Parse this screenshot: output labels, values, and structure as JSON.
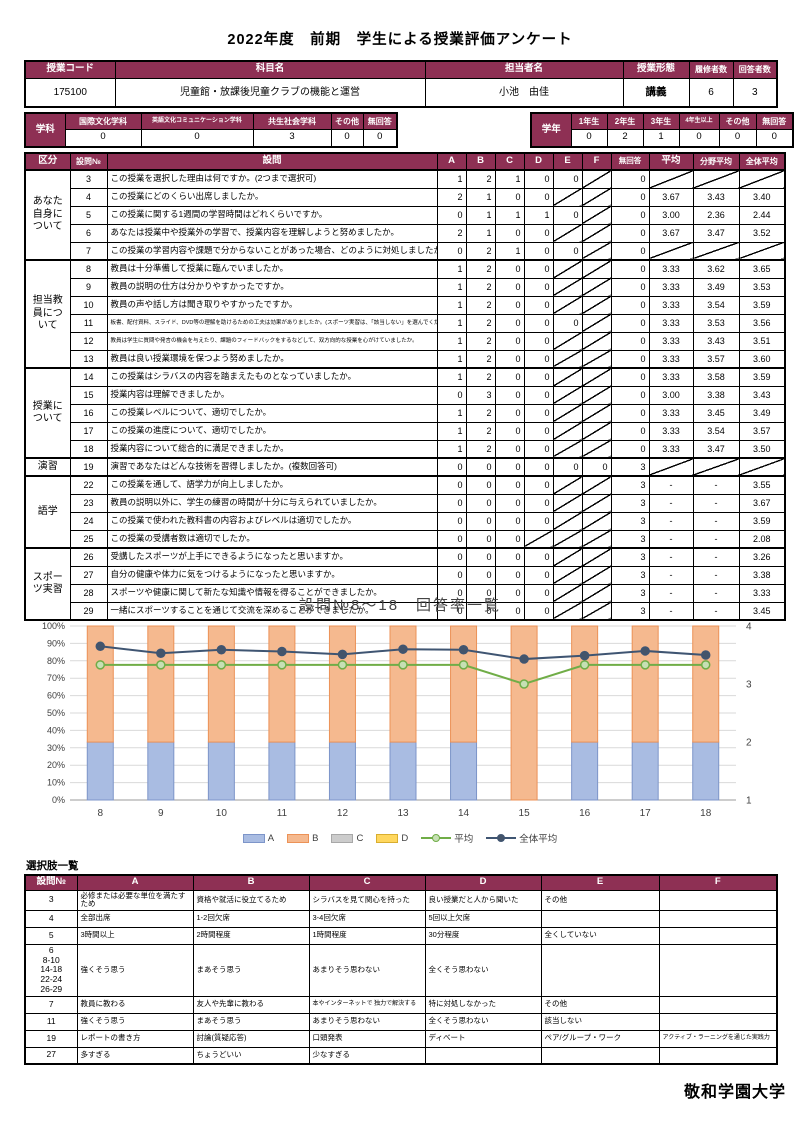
{
  "accent_color": "#8e3054",
  "page_title": "2022年度　前期　学生による授業評価アンケート",
  "course_table": {
    "headers": [
      "授業コード",
      "科目名",
      "担当者名",
      "授業形態",
      "履修者数",
      "回答者数"
    ],
    "values": [
      "175100",
      "児童館・放課後児童クラブの機能と運営",
      "小池　由佳",
      "講義",
      "6",
      "3"
    ]
  },
  "dept_table": {
    "label": "学科",
    "headers": [
      "国際文化学科",
      "英語文化コミュニケーション学科",
      "共生社会学科",
      "その他",
      "無回答"
    ],
    "values": [
      "0",
      "0",
      "3",
      "0",
      "0"
    ]
  },
  "year_table": {
    "label": "学年",
    "headers": [
      "1年生",
      "2年生",
      "3年生",
      "4年生以上",
      "その他",
      "無回答"
    ],
    "values": [
      "0",
      "2",
      "1",
      "0",
      "0",
      "0"
    ]
  },
  "question_table": {
    "headers": [
      "区分",
      "設問№",
      "設問",
      "A",
      "B",
      "C",
      "D",
      "E",
      "F",
      "無回答",
      "平均",
      "分野平均",
      "全体平均"
    ],
    "groups": [
      {
        "label": "あなた自身について",
        "rows": [
          {
            "no": "3",
            "q": "この授業を選択した理由は何ですか。(2つまで選択可)",
            "cells": [
              "1",
              "2",
              "1",
              "0",
              "0",
              "\\",
              "0",
              "\\",
              "\\",
              "\\"
            ]
          },
          {
            "no": "4",
            "q": "この授業にどのくらい出席しましたか。",
            "cells": [
              "2",
              "1",
              "0",
              "0",
              "\\",
              "\\",
              "0",
              "3.67",
              "3.43",
              "3.40"
            ]
          },
          {
            "no": "5",
            "q": "この授業に関する1週間の学習時間はどれくらいですか。",
            "cells": [
              "0",
              "1",
              "1",
              "1",
              "0",
              "\\",
              "0",
              "3.00",
              "2.36",
              "2.44"
            ]
          },
          {
            "no": "6",
            "q": "あなたは授業中や授業外の学習で、授業内容を理解しようと努めましたか。",
            "cells": [
              "2",
              "1",
              "0",
              "0",
              "\\",
              "\\",
              "0",
              "3.67",
              "3.47",
              "3.52"
            ]
          },
          {
            "no": "7",
            "q": "この授業の学習内容や課題で分からないことがあった場合、どのように対処しましたか。",
            "cells": [
              "0",
              "2",
              "1",
              "0",
              "0",
              "\\",
              "0",
              "\\",
              "\\",
              "\\"
            ]
          }
        ]
      },
      {
        "label": "担当教員について",
        "rows": [
          {
            "no": "8",
            "q": "教員は十分準備して授業に臨んでいましたか。",
            "cells": [
              "1",
              "2",
              "0",
              "0",
              "\\",
              "\\",
              "0",
              "3.33",
              "3.62",
              "3.65"
            ]
          },
          {
            "no": "9",
            "q": "教員の説明の仕方は分かりやすかったですか。",
            "cells": [
              "1",
              "2",
              "0",
              "0",
              "\\",
              "\\",
              "0",
              "3.33",
              "3.49",
              "3.53"
            ]
          },
          {
            "no": "10",
            "q": "教員の声や話し方は聞き取りやすかったですか。",
            "cells": [
              "1",
              "2",
              "0",
              "0",
              "\\",
              "\\",
              "0",
              "3.33",
              "3.54",
              "3.59"
            ]
          },
          {
            "no": "11",
            "q": "板書、配付資料、スライド、DVD等の理解を助けるための工夫は効果がありましたか。(スポーツ実習は、「該当しない」を選んでください)",
            "small": true,
            "cells": [
              "1",
              "2",
              "0",
              "0",
              "0",
              "\\",
              "0",
              "3.33",
              "3.53",
              "3.56"
            ]
          },
          {
            "no": "12",
            "q": "教員は学生に質問や発言の機会を与えたり、課題のフィードバックをするなどして、双方向的な授業を心がけていましたか。",
            "small": true,
            "cells": [
              "1",
              "2",
              "0",
              "0",
              "\\",
              "\\",
              "0",
              "3.33",
              "3.43",
              "3.51"
            ]
          },
          {
            "no": "13",
            "q": "教員は良い授業環境を保つよう努めましたか。",
            "cells": [
              "1",
              "2",
              "0",
              "0",
              "\\",
              "\\",
              "0",
              "3.33",
              "3.57",
              "3.60"
            ]
          }
        ]
      },
      {
        "label": "授業について",
        "rows": [
          {
            "no": "14",
            "q": "この授業はシラバスの内容を踏まえたものとなっていましたか。",
            "cells": [
              "1",
              "2",
              "0",
              "0",
              "\\",
              "\\",
              "0",
              "3.33",
              "3.58",
              "3.59"
            ]
          },
          {
            "no": "15",
            "q": "授業内容は理解できましたか。",
            "cells": [
              "0",
              "3",
              "0",
              "0",
              "\\",
              "\\",
              "0",
              "3.00",
              "3.38",
              "3.43"
            ]
          },
          {
            "no": "16",
            "q": "この授業レベルについて、適切でしたか。",
            "cells": [
              "1",
              "2",
              "0",
              "0",
              "\\",
              "\\",
              "0",
              "3.33",
              "3.45",
              "3.49"
            ]
          },
          {
            "no": "17",
            "q": "この授業の進度について、適切でしたか。",
            "cells": [
              "1",
              "2",
              "0",
              "0",
              "\\",
              "\\",
              "0",
              "3.33",
              "3.54",
              "3.57"
            ]
          },
          {
            "no": "18",
            "q": "授業内容について総合的に満足できましたか。",
            "cells": [
              "1",
              "2",
              "0",
              "0",
              "\\",
              "\\",
              "0",
              "3.33",
              "3.47",
              "3.50"
            ]
          }
        ]
      },
      {
        "label": "演習",
        "rows": [
          {
            "no": "19",
            "q": "演習であなたはどんな技術を習得しましたか。(複数回答可)",
            "cells": [
              "0",
              "0",
              "0",
              "0",
              "0",
              "0",
              "3",
              "\\",
              "\\",
              "\\"
            ]
          }
        ]
      },
      {
        "label": "語学",
        "rows": [
          {
            "no": "22",
            "q": "この授業を通して、語学力が向上しましたか。",
            "cells": [
              "0",
              "0",
              "0",
              "0",
              "\\",
              "\\",
              "3",
              "-",
              "-",
              "3.55"
            ]
          },
          {
            "no": "23",
            "q": "教員の説明以外に、学生の練習の時間が十分に与えられていましたか。",
            "cells": [
              "0",
              "0",
              "0",
              "0",
              "\\",
              "\\",
              "3",
              "-",
              "-",
              "3.67"
            ]
          },
          {
            "no": "24",
            "q": "この授業で使われた教科書の内容およびレベルは適切でしたか。",
            "cells": [
              "0",
              "0",
              "0",
              "0",
              "\\",
              "\\",
              "3",
              "-",
              "-",
              "3.59"
            ]
          },
          {
            "no": "25",
            "q": "この授業の受講者数は適切でしたか。",
            "cells": [
              "0",
              "0",
              "0",
              "\\",
              "\\",
              "\\",
              "3",
              "-",
              "-",
              "2.08"
            ]
          }
        ]
      },
      {
        "label": "スポーツ実習",
        "rows": [
          {
            "no": "26",
            "q": "受講したスポーツが上手にできるようになったと思いますか。",
            "cells": [
              "0",
              "0",
              "0",
              "0",
              "\\",
              "\\",
              "3",
              "-",
              "-",
              "3.26"
            ]
          },
          {
            "no": "27",
            "q": "自分の健康や体力に気をつけるようになったと思いますか。",
            "cells": [
              "0",
              "0",
              "0",
              "0",
              "\\",
              "\\",
              "3",
              "-",
              "-",
              "3.38"
            ]
          },
          {
            "no": "28",
            "q": "スポーツや健康に関して新たな知識や情報を得ることができましたか。",
            "cells": [
              "0",
              "0",
              "0",
              "0",
              "\\",
              "\\",
              "3",
              "-",
              "-",
              "3.33"
            ]
          },
          {
            "no": "29",
            "q": "一緒にスポーツすることを通じて交流を深めることができましたか。",
            "cells": [
              "0",
              "0",
              "0",
              "0",
              "\\",
              "\\",
              "3",
              "-",
              "-",
              "3.45"
            ]
          }
        ]
      }
    ]
  },
  "chart_data": {
    "type": "bar",
    "title": "設問№8～18　回答率一覧",
    "categories": [
      "8",
      "9",
      "10",
      "11",
      "12",
      "13",
      "14",
      "15",
      "16",
      "17",
      "18"
    ],
    "stacked_percent": true,
    "series": [
      {
        "name": "A",
        "color": "#a9bce2",
        "border": "#7d95c9",
        "values": [
          33.3,
          33.3,
          33.3,
          33.3,
          33.3,
          33.3,
          33.3,
          0,
          33.3,
          33.3,
          33.3
        ]
      },
      {
        "name": "B",
        "color": "#f5b98f",
        "border": "#ec9257",
        "values": [
          66.7,
          66.7,
          66.7,
          66.7,
          66.7,
          66.7,
          66.7,
          100,
          66.7,
          66.7,
          66.7
        ]
      },
      {
        "name": "C",
        "color": "#cccccc",
        "border": "#a8a8a8",
        "values": [
          0,
          0,
          0,
          0,
          0,
          0,
          0,
          0,
          0,
          0,
          0
        ]
      },
      {
        "name": "D",
        "color": "#ffd75e",
        "border": "#d9ae2f",
        "values": [
          0,
          0,
          0,
          0,
          0,
          0,
          0,
          0,
          0,
          0,
          0
        ]
      }
    ],
    "line_series": [
      {
        "name": "平均",
        "color": "#70ad47",
        "marker_fill": "#c6e0b4",
        "values": [
          3.33,
          3.33,
          3.33,
          3.33,
          3.33,
          3.33,
          3.33,
          3.0,
          3.33,
          3.33,
          3.33
        ]
      },
      {
        "name": "全体平均",
        "color": "#3f5572",
        "marker_fill": "#44546a",
        "values": [
          3.65,
          3.53,
          3.59,
          3.56,
          3.51,
          3.6,
          3.59,
          3.43,
          3.49,
          3.57,
          3.5
        ]
      }
    ],
    "left_axis": {
      "min": 0,
      "max": 100,
      "step": 10,
      "format": "percent",
      "labels": [
        "0%",
        "10%",
        "20%",
        "30%",
        "40%",
        "50%",
        "60%",
        "70%",
        "80%",
        "90%",
        "100%"
      ]
    },
    "right_axis": {
      "min": 1,
      "max": 4,
      "ticks": [
        1,
        2,
        3,
        4
      ]
    },
    "legend": [
      "A",
      "B",
      "C",
      "D",
      "平均",
      "全体平均"
    ],
    "legend_position": "bottom",
    "grid": true
  },
  "choices_table": {
    "title": "選択肢一覧",
    "headers": [
      "設問№",
      "A",
      "B",
      "C",
      "D",
      "E",
      "F"
    ],
    "rows": [
      {
        "no": "3",
        "choices": [
          "必修または必要な単位を満たすため",
          "資格や就活に役立てるため",
          "シラバスを見て関心を持った",
          "良い授業だと人から聞いた",
          "その他",
          ""
        ]
      },
      {
        "no": "4",
        "choices": [
          "全部出席",
          "1-2回欠席",
          "3-4回欠席",
          "5回以上欠席",
          "",
          ""
        ]
      },
      {
        "no": "5",
        "choices": [
          "3時間以上",
          "2時間程度",
          "1時間程度",
          "30分程度",
          "全くしていない",
          ""
        ]
      },
      {
        "no": "6\n8-10\n14-18\n22-24\n26-29",
        "choices": [
          "強くそう思う",
          "まあそう思う",
          "あまりそう思わない",
          "全くそう思わない",
          "",
          ""
        ]
      },
      {
        "no": "7",
        "choices": [
          "教員に教わる",
          "友人や先輩に教わる",
          "本やインターネットで\n独力で解決する",
          "特に対処しなかった",
          "その他",
          ""
        ]
      },
      {
        "no": "11",
        "choices": [
          "強くそう思う",
          "まあそう思う",
          "あまりそう思わない",
          "全くそう思わない",
          "該当しない",
          ""
        ]
      },
      {
        "no": "19",
        "choices": [
          "レポートの書き方",
          "討論(質疑応答)",
          "口頭発表",
          "ディベート",
          "ペア/グループ・ワーク",
          "アクティブ・ラーニングを通じた実践力"
        ]
      },
      {
        "no": "27",
        "choices": [
          "多すぎる",
          "ちょうどいい",
          "少なすぎる",
          "",
          "",
          ""
        ]
      }
    ]
  },
  "footer": {
    "university": "敬和学園大学"
  }
}
